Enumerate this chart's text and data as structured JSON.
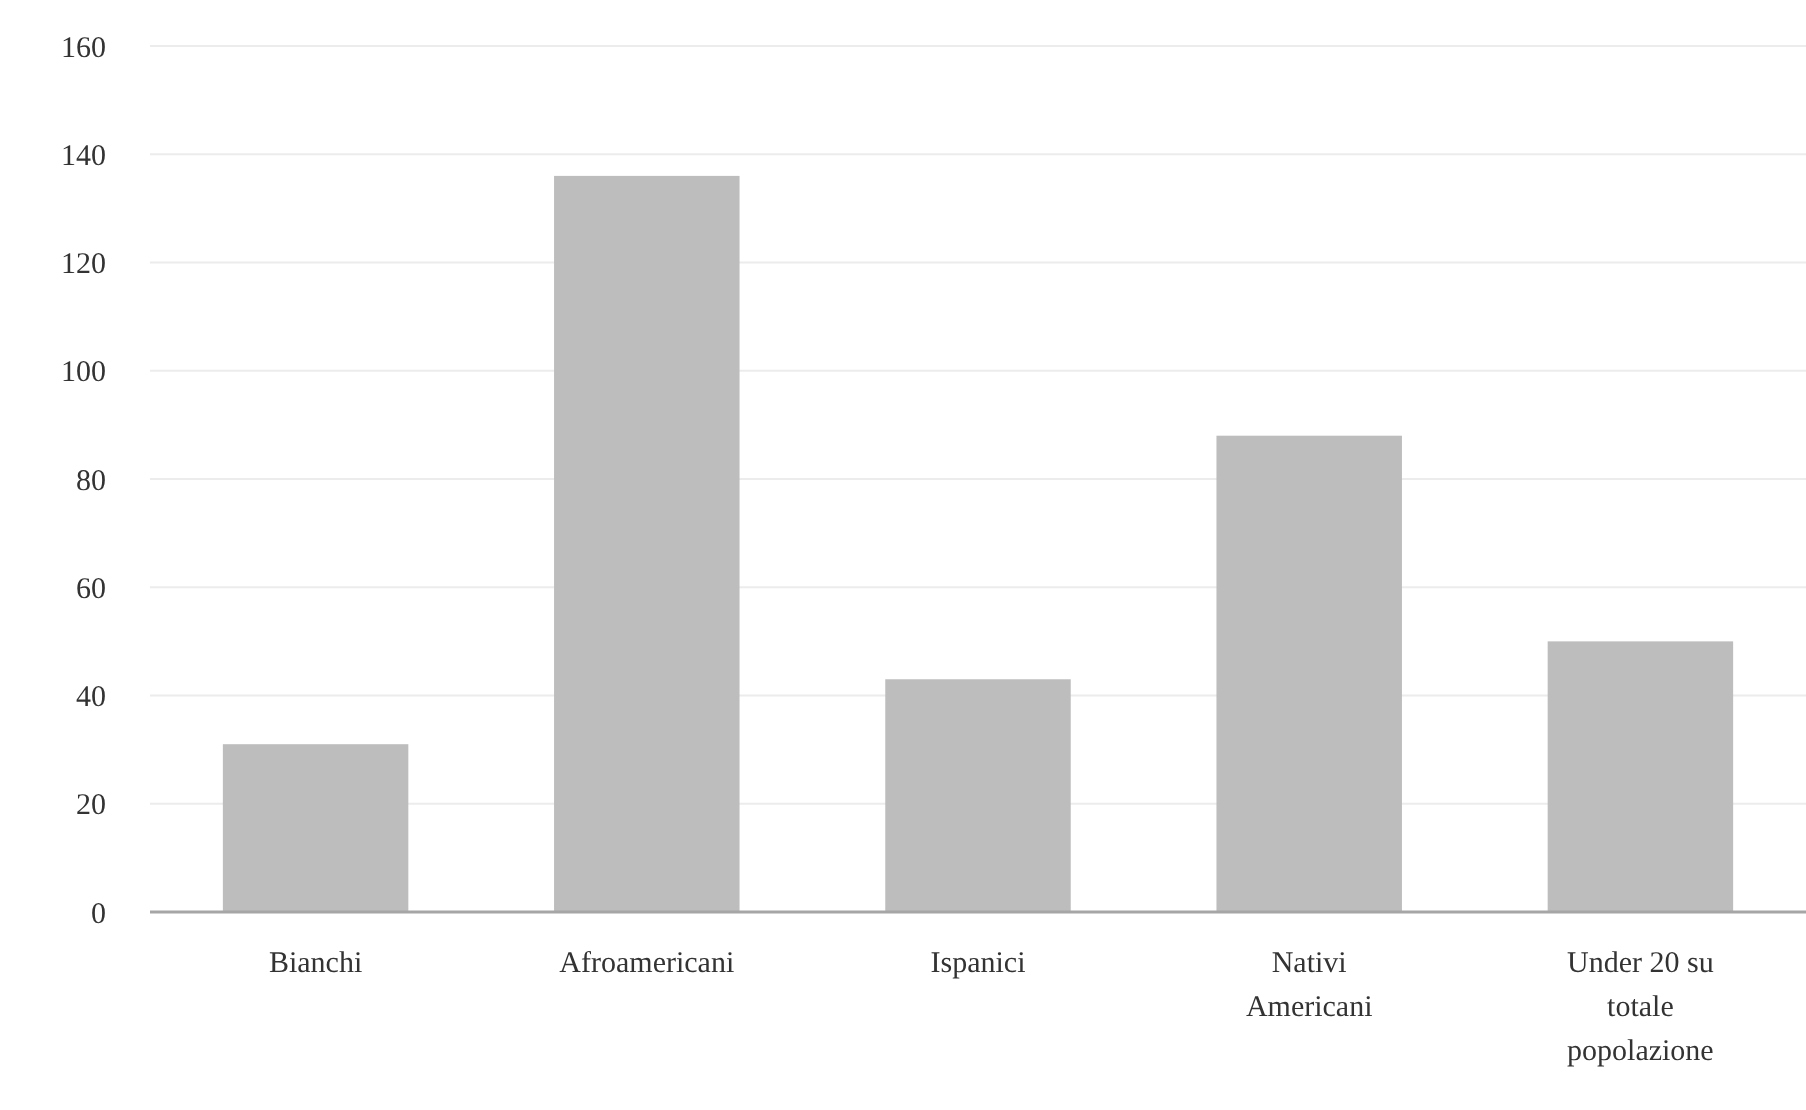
{
  "chart_data": {
    "type": "bar",
    "categories": [
      "Bianchi",
      "Afroamericani",
      "Ispanici",
      "Nativi Americani",
      "Under 20 su totale popolazione"
    ],
    "values": [
      31,
      136,
      43,
      88,
      50
    ],
    "color": "#bdbdbd",
    "ylim": [
      0,
      160
    ],
    "yticks": [
      0,
      20,
      40,
      60,
      80,
      100,
      120,
      140,
      160
    ],
    "grid": "y"
  }
}
